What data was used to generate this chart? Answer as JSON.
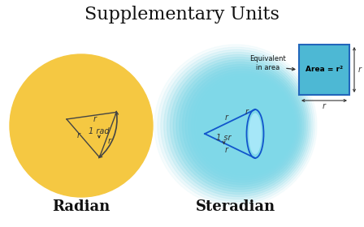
{
  "title": "Supplementary Units",
  "title_fontsize": 16,
  "background_color": "#ffffff",
  "radian_circle_color": "#f5c842",
  "radian_circle_alpha": 1.0,
  "steradian_circle_color": "#7fd8e8",
  "label_radian": "Radian",
  "label_steradian": "Steradian",
  "label_fontsize": 13,
  "triangle_color": "#444444",
  "arc_color": "#444444",
  "cone_color": "#1155cc",
  "square_fill": "#4db8d4",
  "square_edge": "#2266bb",
  "equiv_text": "Equivalent\nin area",
  "area_text": "Area = r²",
  "r_label_color": "#333333",
  "arrow_color": "#333333"
}
